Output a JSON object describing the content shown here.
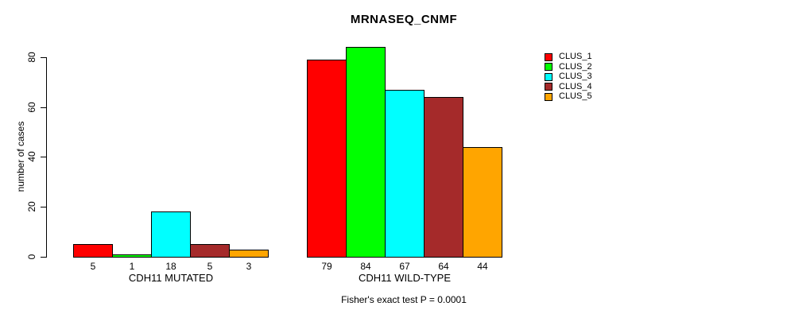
{
  "title": "MRNASEQ_CNMF",
  "caption": "Fisher's exact test P = 0.0001",
  "chart_data": {
    "type": "bar",
    "title": "MRNASEQ_CNMF",
    "xlabel": "",
    "ylabel": "number of cases",
    "ylim": [
      0,
      84
    ],
    "yticks": [
      0,
      20,
      40,
      60,
      80
    ],
    "grid": false,
    "legend_position": "top-right",
    "series": [
      {
        "name": "CLUS_1",
        "color": "#FF0000"
      },
      {
        "name": "CLUS_2",
        "color": "#00FF00"
      },
      {
        "name": "CLUS_3",
        "color": "#00FFFF"
      },
      {
        "name": "CLUS_4",
        "color": "#A52A2A"
      },
      {
        "name": "CLUS_5",
        "color": "#FFA500"
      }
    ],
    "groups": [
      {
        "label": "CDH11 MUTATED",
        "values": [
          5,
          1,
          18,
          5,
          3
        ]
      },
      {
        "label": "CDH11 WILD-TYPE",
        "values": [
          79,
          84,
          67,
          64,
          44
        ]
      }
    ],
    "annotation": "Fisher's exact test P = 0.0001"
  }
}
